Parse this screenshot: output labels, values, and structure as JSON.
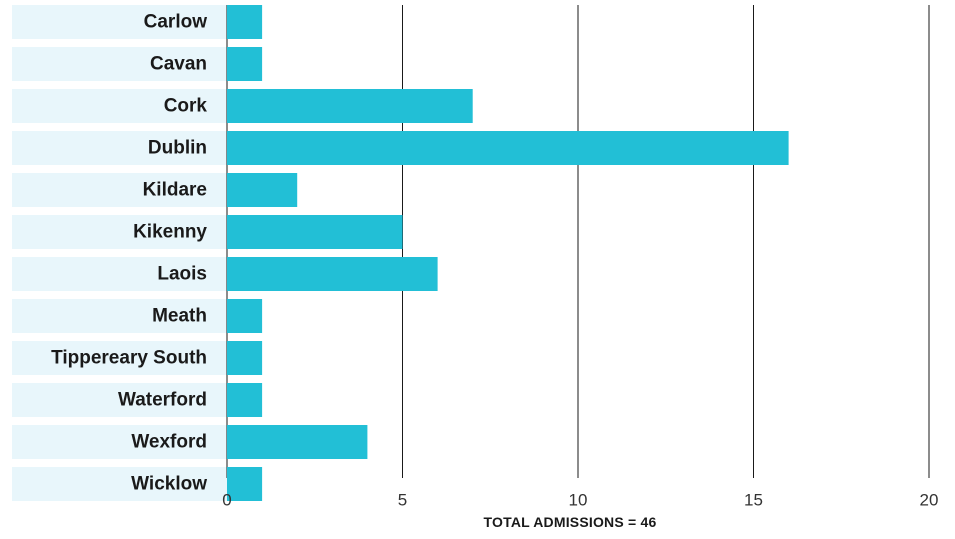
{
  "chart_data": {
    "type": "bar",
    "orientation": "horizontal",
    "categories": [
      "Carlow",
      "Cavan",
      "Cork",
      "Dublin",
      "Kildare",
      "Kikenny",
      "Laois",
      "Meath",
      "Tippereary South",
      "Waterford",
      "Wexford",
      "Wicklow"
    ],
    "values": [
      1,
      1,
      7,
      16,
      2,
      5,
      6,
      1,
      1,
      1,
      4,
      1
    ],
    "x_ticks": [
      "0",
      "5",
      "10",
      "15",
      "20"
    ],
    "xlim": [
      0,
      20
    ],
    "grid": true,
    "footer": "TOTAL ADMISSIONS = 46",
    "colors": {
      "bar": "#22bfd6",
      "label_band": "#e8f6fb",
      "grid": "#1a1a1a"
    }
  }
}
